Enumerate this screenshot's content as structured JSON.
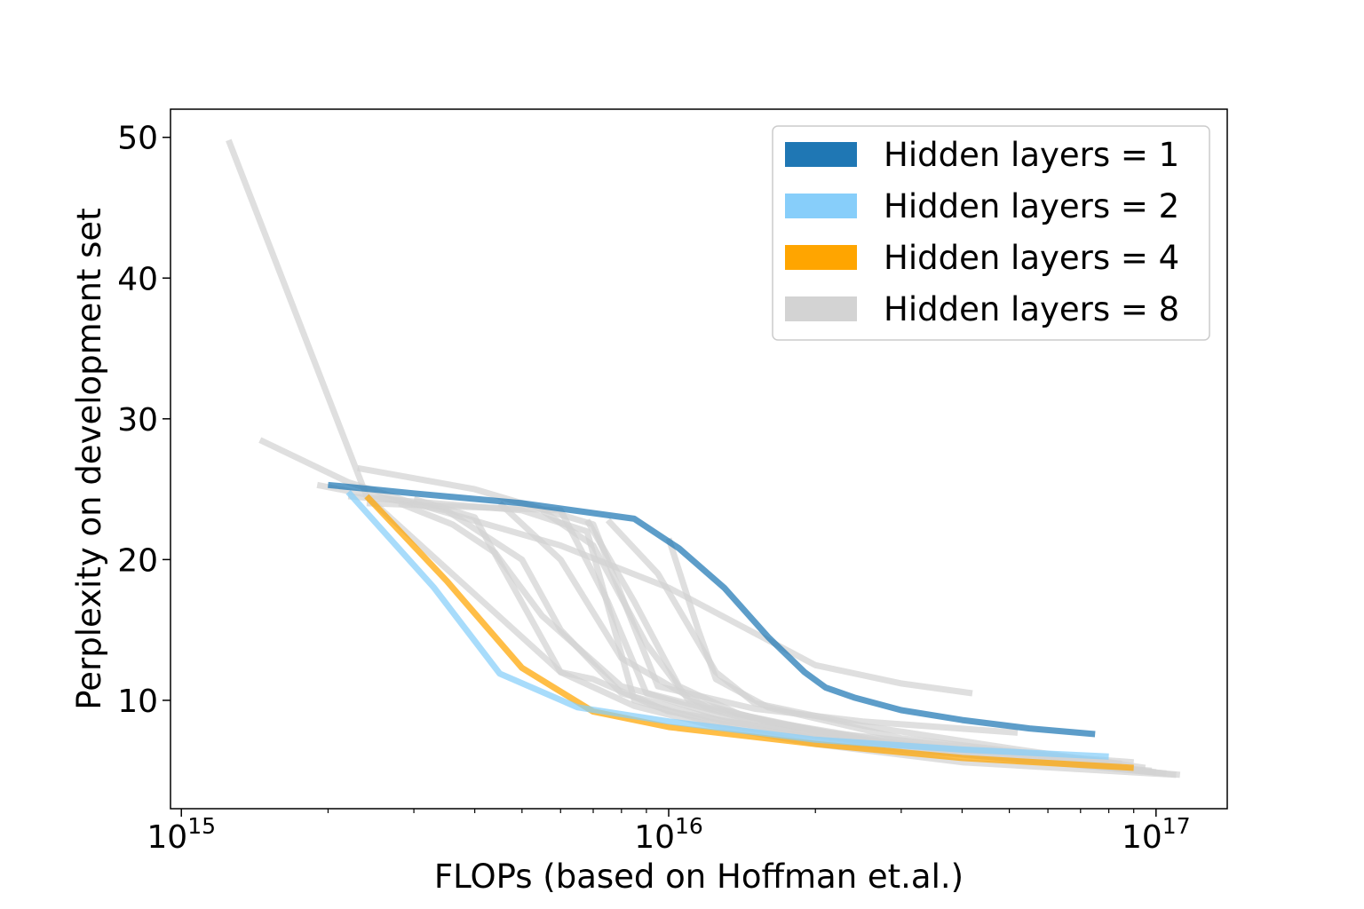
{
  "chart_data": {
    "type": "line",
    "xlabel": "FLOPs (based on Hoffman et.al.)",
    "ylabel": "Perplexity on development set",
    "xscale": "log",
    "xlim": [
      950000000000000.0,
      1.4e+17
    ],
    "ylim": [
      2.3,
      52
    ],
    "x_ticks": [
      1000000000000000.0,
      1e+16,
      1e+17
    ],
    "x_tick_labels": [
      {
        "base": "10",
        "exp": "15"
      },
      {
        "base": "10",
        "exp": "16"
      },
      {
        "base": "10",
        "exp": "17"
      }
    ],
    "y_ticks": [
      10,
      20,
      30,
      40,
      50
    ],
    "y_tick_labels": [
      "10",
      "20",
      "30",
      "40",
      "50"
    ],
    "grid": false,
    "legend_position": "top-right",
    "legend": [
      {
        "label": "Hidden layers = 1",
        "color": "#1f77b4"
      },
      {
        "label": "Hidden layers = 2",
        "color": "#87cefa"
      },
      {
        "label": "Hidden layers = 4",
        "color": "#ffa500"
      },
      {
        "label": "Hidden layers = 8",
        "color": "#d3d3d3"
      }
    ],
    "series": [
      {
        "group": "Hidden layers = 8",
        "color": "#d3d3d3",
        "x": [
          1250000000000000.0,
          2400000000000000.0,
          6000000000000000.0,
          8500000000000000.0,
          1.2e+16,
          2e+16,
          4e+16,
          1.1e+17
        ],
        "y": [
          49.8,
          24.5,
          12.0,
          9.6,
          8.3,
          6.9,
          5.6,
          4.7
        ]
      },
      {
        "group": "Hidden layers = 8",
        "color": "#d3d3d3",
        "x": [
          1450000000000000.0,
          2200000000000000.0,
          3000000000000000.0,
          6000000000000000.0,
          1e+16,
          2e+16,
          3e+16,
          4.2e+16
        ],
        "y": [
          28.5,
          25.5,
          24.0,
          21.0,
          18.0,
          12.5,
          11.2,
          10.5
        ]
      },
      {
        "group": "Hidden layers = 8",
        "color": "#d3d3d3",
        "x": [
          2300000000000000.0,
          4000000000000000.0,
          7000000000000000.0,
          9500000000000000.0,
          1.5e+16,
          2.5e+16,
          5.2e+16
        ],
        "y": [
          26.5,
          25.0,
          22.5,
          11.0,
          9.4,
          8.5,
          7.7
        ]
      },
      {
        "group": "Hidden layers = 8",
        "color": "#d3d3d3",
        "x": [
          1900000000000000.0,
          3500000000000000.0,
          5000000000000000.0,
          6000000000000000.0,
          8000000000000000.0,
          1.3e+16,
          3e+16,
          9e+16
        ],
        "y": [
          25.3,
          23.5,
          20.0,
          15.0,
          10.5,
          8.5,
          6.8,
          5.6
        ]
      },
      {
        "group": "Hidden layers = 8",
        "color": "#d3d3d3",
        "x": [
          2200000000000000.0,
          5000000000000000.0,
          6800000000000000.0,
          8500000000000000.0,
          1.2e+16,
          2.5e+16,
          9.5e+16
        ],
        "y": [
          24.5,
          23.5,
          22.0,
          10.0,
          8.5,
          6.8,
          5.0
        ]
      },
      {
        "group": "Hidden layers = 8",
        "color": "#d3d3d3",
        "x": [
          2400000000000000.0,
          6000000000000000.0,
          7500000000000000.0,
          9000000000000000.0,
          1.3e+16,
          3e+16,
          9.8e+16
        ],
        "y": [
          24.0,
          23.5,
          17.0,
          10.5,
          8.8,
          6.5,
          5.0
        ]
      },
      {
        "group": "Hidden layers = 8",
        "color": "#d3d3d3",
        "x": [
          2800000000000000.0,
          3600000000000000.0,
          4400000000000000.0,
          5500000000000000.0,
          8000000000000000.0,
          1.4e+16,
          3.5e+16,
          1.05e+17
        ],
        "y": [
          24.0,
          22.5,
          20.5,
          16.0,
          11.0,
          8.8,
          6.4,
          4.8
        ]
      },
      {
        "group": "Hidden layers = 8",
        "color": "#d3d3d3",
        "x": [
          3000000000000000.0,
          4000000000000000.0,
          6000000000000000.0,
          7000000000000000.0,
          1e+16,
          2e+16,
          8e+16
        ],
        "y": [
          24.3,
          23.0,
          12.0,
          11.5,
          9.2,
          7.5,
          5.5
        ]
      },
      {
        "group": "Hidden layers = 8",
        "color": "#d3d3d3",
        "x": [
          4500000000000000.0,
          6000000000000000.0,
          8000000000000000.0,
          1.2e+16,
          2e+16,
          7e+16
        ],
        "y": [
          24.0,
          20.0,
          13.0,
          9.5,
          7.8,
          5.8
        ]
      },
      {
        "group": "Hidden layers = 8",
        "color": "#d3d3d3",
        "x": [
          5500000000000000.0,
          7000000000000000.0,
          9000000000000000.0,
          1.1e+16,
          1.6e+16,
          4e+16,
          1e+17
        ],
        "y": [
          23.5,
          21.0,
          14.0,
          10.0,
          8.5,
          6.2,
          4.9
        ]
      },
      {
        "group": "Hidden layers = 8",
        "color": "#d3d3d3",
        "x": [
          6800000000000000.0,
          8500000000000000.0,
          1.05e+16,
          1.4e+16,
          2.5e+16,
          6e+16,
          1.12e+17
        ],
        "y": [
          22.8,
          17.0,
          11.0,
          9.0,
          7.2,
          5.6,
          4.7
        ]
      },
      {
        "group": "Hidden layers = 8",
        "color": "#d3d3d3",
        "x": [
          7500000000000000.0,
          9500000000000000.0,
          1.25e+16,
          1.5e+16,
          2.5e+16,
          5e+16,
          9.5e+16
        ],
        "y": [
          22.8,
          19.0,
          12.0,
          9.8,
          8.2,
          6.6,
          5.2
        ]
      },
      {
        "group": "Hidden layers = 8",
        "color": "#d3d3d3",
        "x": [
          1e+16,
          1.15e+16,
          1.25e+16,
          1.6e+16,
          3e+16,
          8.5e+16
        ],
        "y": [
          21.5,
          15.0,
          11.5,
          9.5,
          7.3,
          5.5
        ]
      },
      {
        "group": "Hidden layers = 4",
        "color": "#ffa500",
        "x": [
          2400000000000000.0,
          3500000000000000.0,
          5000000000000000.0,
          7000000000000000.0,
          1e+16,
          2e+16,
          4e+16,
          9e+16
        ],
        "y": [
          24.5,
          18.5,
          12.3,
          9.2,
          8.1,
          6.9,
          5.9,
          5.2
        ]
      },
      {
        "group": "Hidden layers = 2",
        "color": "#87cefa",
        "x": [
          2200000000000000.0,
          3300000000000000.0,
          4500000000000000.0,
          6500000000000000.0,
          1e+16,
          2e+16,
          4e+16,
          8e+16
        ],
        "y": [
          24.8,
          18.0,
          11.9,
          9.5,
          8.5,
          7.2,
          6.5,
          6.0
        ]
      },
      {
        "group": "Hidden layers = 1",
        "color": "#1f77b4",
        "x": [
          2000000000000000.0,
          3000000000000000.0,
          5000000000000000.0,
          7000000000000000.0,
          8500000000000000.0,
          1.05e+16,
          1.3e+16,
          1.6e+16,
          1.9e+16,
          2.1e+16,
          2.4e+16,
          3e+16,
          4e+16,
          5.5e+16,
          7.5e+16
        ],
        "y": [
          25.3,
          24.7,
          24.0,
          23.3,
          22.9,
          20.8,
          18.0,
          14.5,
          12.0,
          10.9,
          10.2,
          9.3,
          8.6,
          8.0,
          7.6
        ]
      }
    ]
  }
}
